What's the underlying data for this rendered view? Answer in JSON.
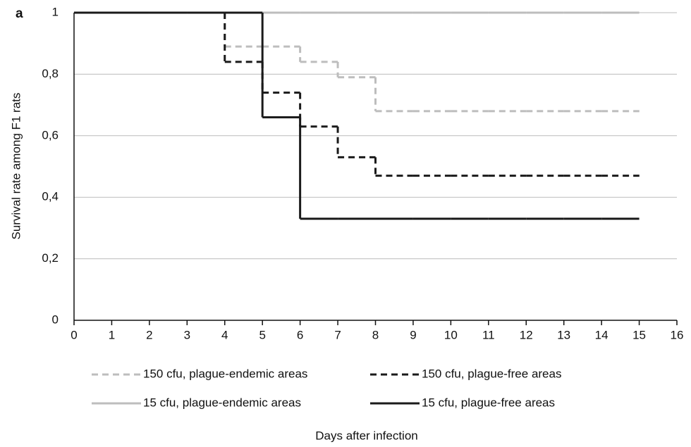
{
  "chart_data": {
    "type": "step",
    "panel_label": "a",
    "xlabel": "Days after infection",
    "ylabel": "Survival rate among F1 rats",
    "x": [
      0,
      1,
      2,
      3,
      4,
      5,
      6,
      7,
      8,
      9,
      10,
      11,
      12,
      13,
      14,
      15
    ],
    "series": [
      {
        "name": "15 cfu, plague-endemic areas",
        "color": "#bdbdbd",
        "dashed": false,
        "values": [
          1,
          1,
          1,
          1,
          1,
          1,
          1,
          1,
          1,
          1,
          1,
          1,
          1,
          1,
          1,
          1
        ]
      },
      {
        "name": "150 cfu, plague-endemic areas",
        "color": "#bdbdbd",
        "dashed": true,
        "values": [
          1,
          1,
          1,
          1,
          0.89,
          0.89,
          0.84,
          0.79,
          0.68,
          0.68,
          0.68,
          0.68,
          0.68,
          0.68,
          0.68,
          0.68
        ]
      },
      {
        "name": "150 cfu, plague-free areas",
        "color": "#1a1a1a",
        "dashed": true,
        "values": [
          1,
          1,
          1,
          1,
          0.84,
          0.74,
          0.63,
          0.53,
          0.47,
          0.47,
          0.47,
          0.47,
          0.47,
          0.47,
          0.47,
          0.47
        ]
      },
      {
        "name": "15 cfu, plague-free areas",
        "color": "#1a1a1a",
        "dashed": false,
        "values": [
          1,
          1,
          1,
          1,
          1,
          0.66,
          0.33,
          0.33,
          0.33,
          0.33,
          0.33,
          0.33,
          0.33,
          0.33,
          0.33,
          0.33
        ]
      }
    ],
    "legend_order": [
      1,
      2,
      0,
      3
    ],
    "xlim": [
      0,
      16
    ],
    "xticks": [
      0,
      1,
      2,
      3,
      4,
      5,
      6,
      7,
      8,
      9,
      10,
      11,
      12,
      13,
      14,
      15,
      16
    ],
    "ylim": [
      0,
      1
    ],
    "yticks": [
      0,
      {
        "value": 0.2,
        "label": "0,2"
      },
      {
        "value": 0.4,
        "label": "0,4"
      },
      {
        "value": 0.6,
        "label": "0,6"
      },
      {
        "value": 0.8,
        "label": "0,8"
      },
      1
    ],
    "grid": true
  }
}
